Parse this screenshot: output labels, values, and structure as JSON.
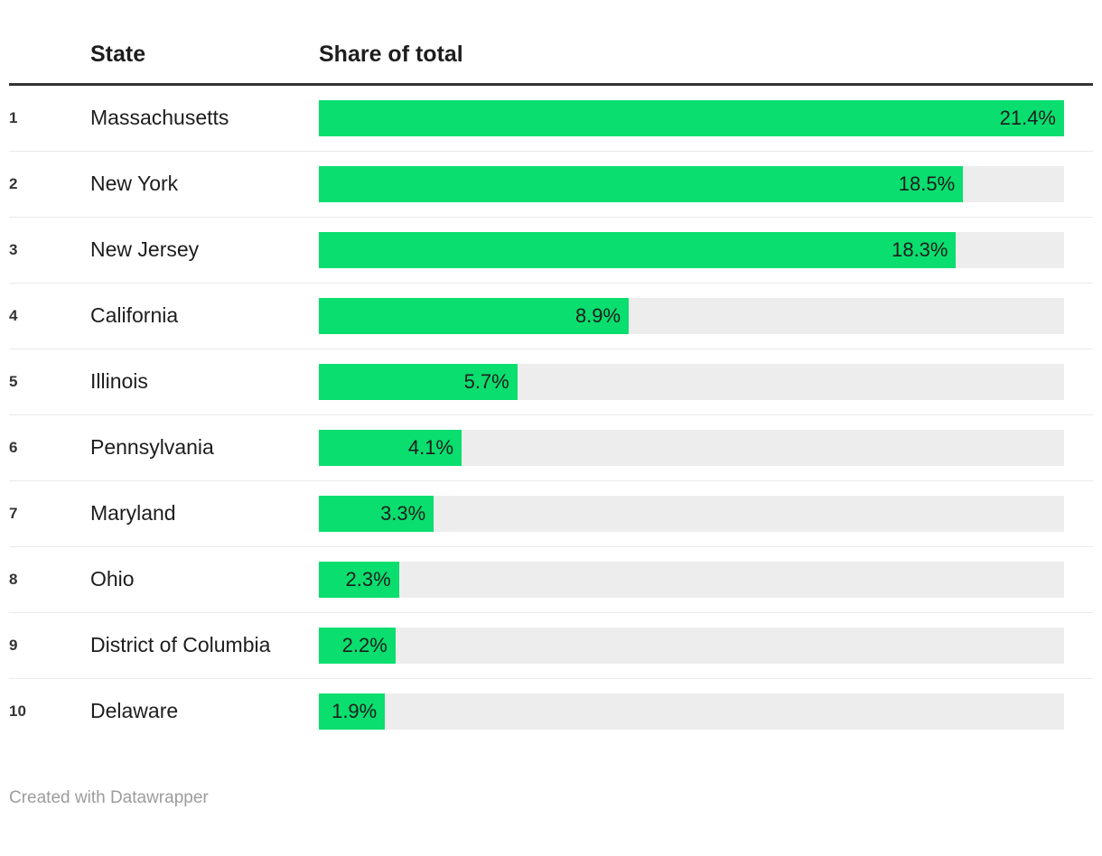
{
  "table": {
    "header": {
      "rank": "",
      "state": "State",
      "value": "Share of total"
    },
    "rows": [
      {
        "rank": "1",
        "state": "Massachusetts",
        "value": 21.4,
        "label": "21.4%"
      },
      {
        "rank": "2",
        "state": "New York",
        "value": 18.5,
        "label": "18.5%"
      },
      {
        "rank": "3",
        "state": "New Jersey",
        "value": 18.3,
        "label": "18.3%"
      },
      {
        "rank": "4",
        "state": "California",
        "value": 8.9,
        "label": "8.9%"
      },
      {
        "rank": "5",
        "state": "Illinois",
        "value": 5.7,
        "label": "5.7%"
      },
      {
        "rank": "6",
        "state": "Pennsylvania",
        "value": 4.1,
        "label": "4.1%"
      },
      {
        "rank": "7",
        "state": "Maryland",
        "value": 3.3,
        "label": "3.3%"
      },
      {
        "rank": "8",
        "state": "Ohio",
        "value": 2.3,
        "label": "2.3%"
      },
      {
        "rank": "9",
        "state": "District of Columbia",
        "value": 2.2,
        "label": "2.2%"
      },
      {
        "rank": "10",
        "state": "Delaware",
        "value": 1.9,
        "label": "1.9%"
      }
    ]
  },
  "footer": {
    "credit": "Created with Datawrapper"
  },
  "colors": {
    "bar": "#0ade6e",
    "track": "#ededed",
    "rule": "#333333",
    "separator": "#eaeaea",
    "text": "#1d1d1d",
    "rank_text": "#333333",
    "footer_text": "#9c9c9c",
    "background": "#ffffff"
  },
  "chart_data": {
    "type": "bar",
    "orientation": "horizontal",
    "title": "",
    "xlabel": "",
    "ylabel": "",
    "unit": "%",
    "columns": [
      "State",
      "Share of total"
    ],
    "categories": [
      "Massachusetts",
      "New York",
      "New Jersey",
      "California",
      "Illinois",
      "Pennsylvania",
      "Maryland",
      "Ohio",
      "District of Columbia",
      "Delaware"
    ],
    "ranks": [
      1,
      2,
      3,
      4,
      5,
      6,
      7,
      8,
      9,
      10
    ],
    "values": [
      21.4,
      18.5,
      18.3,
      8.9,
      5.7,
      4.1,
      3.3,
      2.3,
      2.2,
      1.9
    ],
    "value_labels": [
      "21.4%",
      "18.5%",
      "18.3%",
      "8.9%",
      "5.7%",
      "4.1%",
      "3.3%",
      "2.3%",
      "2.2%",
      "1.9%"
    ],
    "axis_max_equals_max_value": true,
    "grid": false,
    "legend": false,
    "value_label_position": "inside-bar-right",
    "source_note": "Created with Datawrapper"
  }
}
